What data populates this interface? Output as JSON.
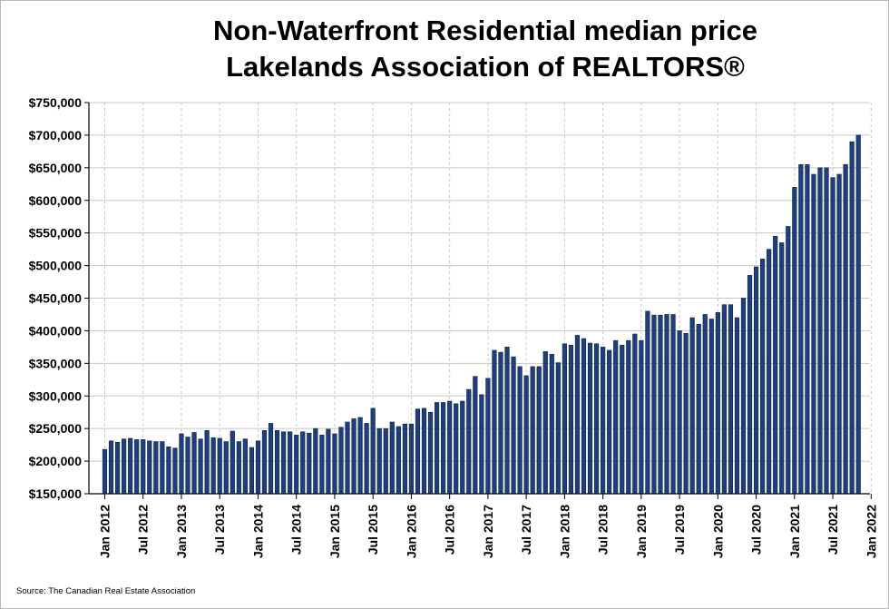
{
  "chart_data": {
    "type": "bar",
    "title": "Non-Waterfront Residential median price",
    "subtitle": "Lakelands Association of REALTORS®",
    "source": "Source: The Canadian Real Estate Association",
    "xlabel": "",
    "ylabel": "",
    "ylim": [
      150000,
      750000
    ],
    "yticks": [
      150000,
      200000,
      250000,
      300000,
      350000,
      400000,
      450000,
      500000,
      550000,
      600000,
      650000,
      700000,
      750000
    ],
    "ytick_labels": [
      "$150,000",
      "$200,000",
      "$250,000",
      "$300,000",
      "$350,000",
      "$400,000",
      "$450,000",
      "$500,000",
      "$550,000",
      "$600,000",
      "$650,000",
      "$700,000",
      "$750,000"
    ],
    "xtick_labels": [
      "Jan 2012",
      "Jul 2012",
      "Jan 2013",
      "Jul 2013",
      "Jan 2014",
      "Jul 2014",
      "Jan 2015",
      "Jul 2015",
      "Jan 2016",
      "Jul 2016",
      "Jan 2017",
      "Jul 2017",
      "Jan 2018",
      "Jul 2018",
      "Jan 2019",
      "Jul 2019",
      "Jan 2020",
      "Jul 2020",
      "Jan 2021",
      "Jul 2021",
      "Jan 2022"
    ],
    "xtick_month_index": [
      0,
      6,
      12,
      18,
      24,
      30,
      36,
      42,
      48,
      54,
      60,
      66,
      72,
      78,
      84,
      90,
      96,
      102,
      108,
      114,
      120
    ],
    "grid": true,
    "bar_color": "#1f3f7a",
    "series": [
      {
        "name": "Median price",
        "start": "Jan 2012",
        "values": [
          218000,
          231000,
          229000,
          234000,
          235000,
          233000,
          233000,
          231000,
          230000,
          230000,
          222000,
          220000,
          242000,
          237000,
          244000,
          234000,
          247000,
          236000,
          235000,
          230000,
          246000,
          230000,
          234000,
          221000,
          231000,
          247000,
          258000,
          247000,
          245000,
          245000,
          240000,
          245000,
          243000,
          250000,
          240000,
          249000,
          242000,
          252000,
          260000,
          265000,
          267000,
          258000,
          281000,
          250000,
          250000,
          260000,
          253000,
          257000,
          257000,
          280000,
          281000,
          275000,
          290000,
          290000,
          292000,
          288000,
          292000,
          310000,
          330000,
          302000,
          327000,
          370000,
          367000,
          375000,
          360000,
          345000,
          331000,
          345000,
          345000,
          368000,
          364000,
          351000,
          380000,
          378000,
          393000,
          388000,
          381000,
          380000,
          375000,
          370000,
          385000,
          378000,
          385000,
          395000,
          385000,
          430000,
          424000,
          424000,
          425000,
          425000,
          400000,
          396000,
          420000,
          410000,
          425000,
          418000,
          428000,
          440000,
          440000,
          420000,
          450000,
          485000,
          498000,
          510000,
          525000,
          545000,
          535000,
          560000,
          620000,
          655000,
          655000,
          640000,
          650000,
          650000,
          635000,
          640000,
          655000,
          690000,
          700000
        ]
      }
    ]
  }
}
